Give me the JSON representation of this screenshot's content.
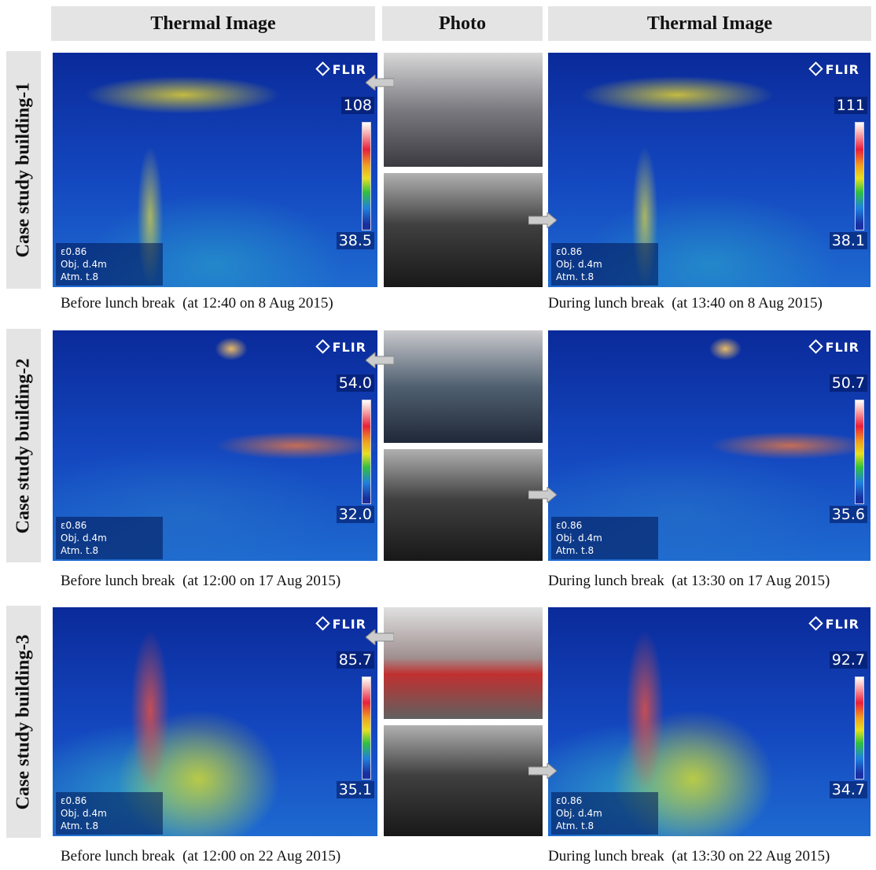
{
  "headers": [
    "Thermal Image",
    "Photo",
    "Thermal Image"
  ],
  "logo": "FLIR",
  "readout": [
    [
      "ε",
      "0.86"
    ],
    [
      "Obj. d.",
      "4m"
    ],
    [
      "Atm. t.",
      "8"
    ]
  ],
  "rows": [
    {
      "label": "Case study building-1",
      "before": {
        "max": "108",
        "min": "38.5",
        "caption": "Before lunch break  (at 12:40 on 8 Aug 2015)"
      },
      "during": {
        "max": "111",
        "min": "38.1",
        "caption": "During lunch break  (at 13:40 on 8 Aug 2015)"
      }
    },
    {
      "label": "Case study building-2",
      "before": {
        "max": "54.0",
        "min": "32.0",
        "caption": "Before lunch break  (at 12:00 on 17 Aug 2015)"
      },
      "during": {
        "max": "50.7",
        "min": "35.6",
        "caption": "During lunch break  (at 13:30 on 17 Aug 2015)"
      }
    },
    {
      "label": "Case study building-3",
      "before": {
        "max": "85.7",
        "min": "35.1",
        "caption": "Before lunch break  (at 12:00 on 22 Aug 2015)"
      },
      "during": {
        "max": "92.7",
        "min": "34.7",
        "caption": "During lunch break  (at 13:30 on 22 Aug 2015)"
      }
    }
  ]
}
